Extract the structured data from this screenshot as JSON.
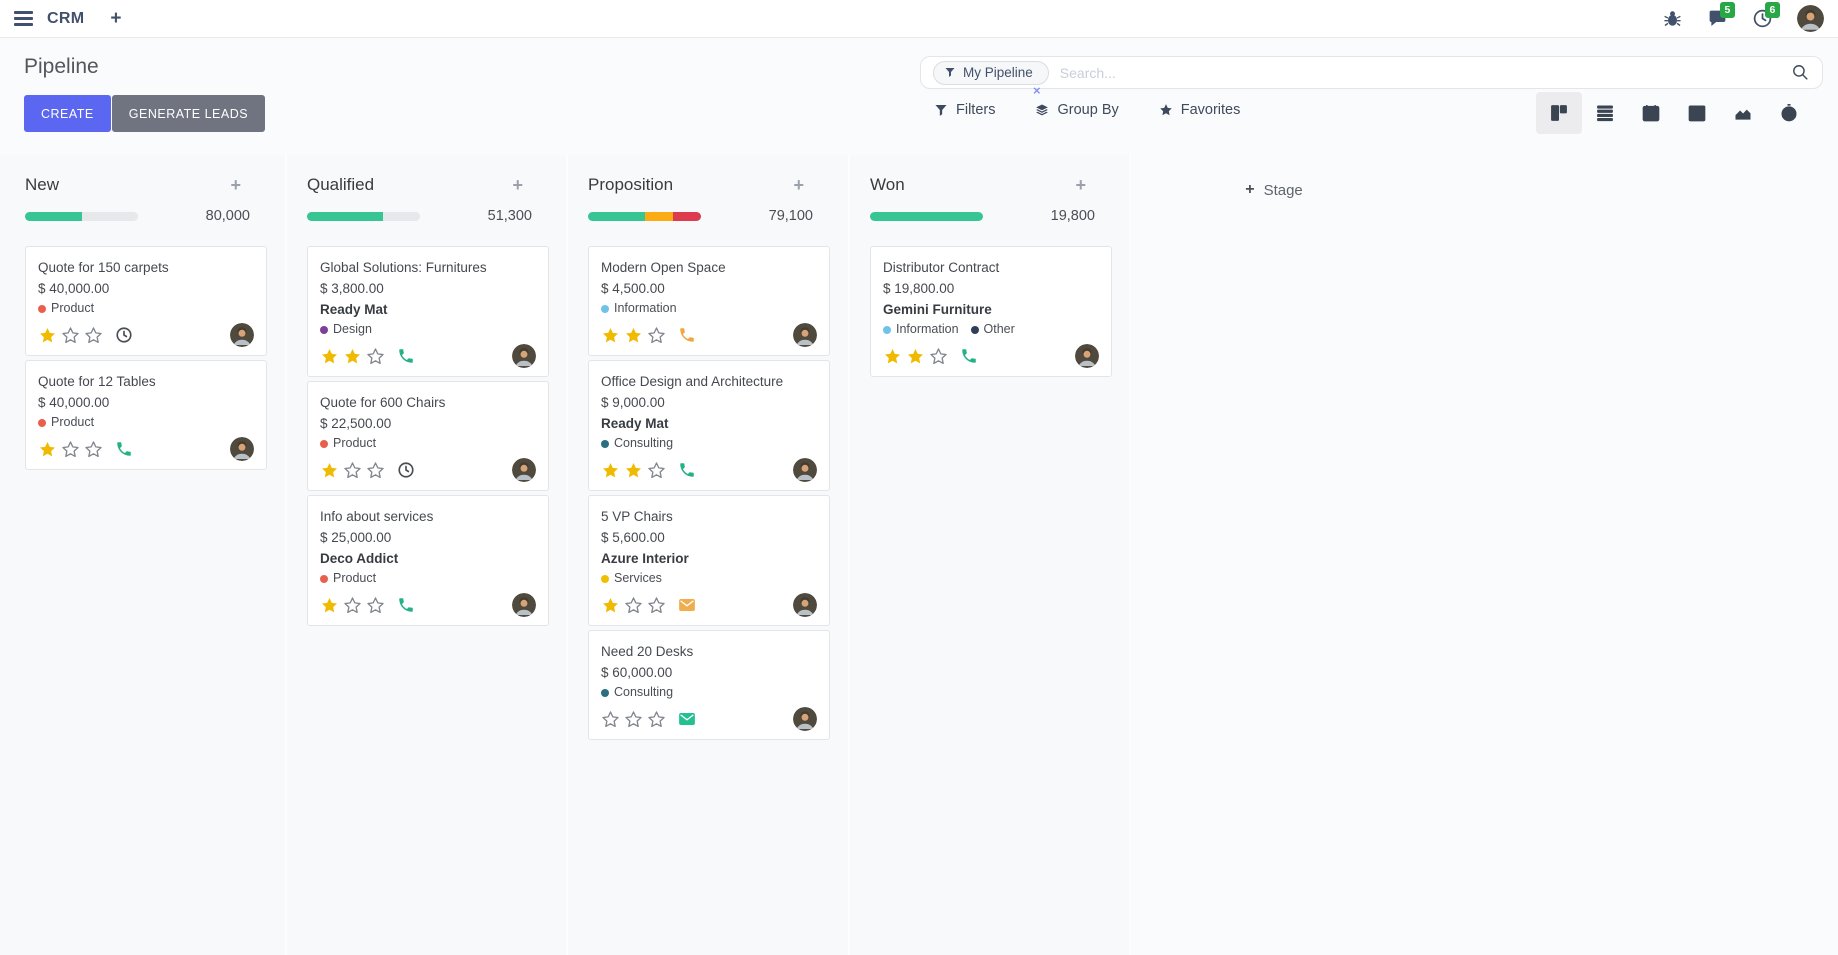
{
  "topbar": {
    "app_name": "CRM",
    "add_label": "+",
    "messages_badge": "5",
    "activities_badge": "6"
  },
  "control_panel": {
    "title": "Pipeline",
    "create_label": "CREATE",
    "generate_leads_label": "GENERATE LEADS",
    "search": {
      "facet_label": "My Pipeline",
      "facet_remove": "×",
      "placeholder": "Search..."
    },
    "filters_label": "Filters",
    "group_by_label": "Group By",
    "favorites_label": "Favorites",
    "views": [
      "kanban",
      "list",
      "calendar",
      "pivot",
      "graph",
      "activity"
    ],
    "active_view": "kanban"
  },
  "colors": {
    "primary_button": "#5b67f0",
    "secondary_button": "#6f7480",
    "badge_green": "#28a745",
    "progress_green": "#36c593",
    "progress_orange": "#fbac15",
    "progress_red": "#dc3c4e",
    "progress_muted": "#e6e8ec",
    "star_gold": "#f0ba00"
  },
  "board": {
    "add_stage_plus": "+",
    "add_stage_label": "Stage",
    "add_card_glyph": "+",
    "columns": [
      {
        "title": "New",
        "counter": "80,000",
        "progress": [
          {
            "state": "future",
            "color": "#36c593",
            "pct": 50
          },
          {
            "state": "none",
            "color": "#e6e8ec",
            "pct": 50
          }
        ],
        "cards": [
          {
            "title": "Quote for 150 carpets",
            "amount": "$ 40,000.00",
            "partner": null,
            "tags": [
              {
                "label": "Product",
                "color": "#e8604c"
              }
            ],
            "stars": 1,
            "activity": {
              "icon": "clock",
              "color": "#4a4e54"
            }
          },
          {
            "title": "Quote for 12 Tables",
            "amount": "$ 40,000.00",
            "partner": null,
            "tags": [
              {
                "label": "Product",
                "color": "#e8604c"
              }
            ],
            "stars": 1,
            "activity": {
              "icon": "phone",
              "color": "#24b187"
            }
          }
        ]
      },
      {
        "title": "Qualified",
        "counter": "51,300",
        "progress": [
          {
            "state": "future",
            "color": "#36c593",
            "pct": 67
          },
          {
            "state": "none",
            "color": "#e6e8ec",
            "pct": 33
          }
        ],
        "cards": [
          {
            "title": "Global Solutions: Furnitures",
            "amount": "$ 3,800.00",
            "partner": "Ready Mat",
            "tags": [
              {
                "label": "Design",
                "color": "#7d3f98"
              }
            ],
            "stars": 2,
            "activity": {
              "icon": "phone",
              "color": "#24b187"
            }
          },
          {
            "title": "Quote for 600 Chairs",
            "amount": "$ 22,500.00",
            "partner": null,
            "tags": [
              {
                "label": "Product",
                "color": "#e8604c"
              }
            ],
            "stars": 1,
            "activity": {
              "icon": "clock",
              "color": "#4a4e54"
            }
          },
          {
            "title": "Info about services",
            "amount": "$ 25,000.00",
            "partner": "Deco Addict",
            "tags": [
              {
                "label": "Product",
                "color": "#e8604c"
              }
            ],
            "stars": 1,
            "activity": {
              "icon": "phone",
              "color": "#24b187"
            }
          }
        ]
      },
      {
        "title": "Proposition",
        "counter": "79,100",
        "progress": [
          {
            "state": "future",
            "color": "#36c593",
            "pct": 50
          },
          {
            "state": "today",
            "color": "#fbac15",
            "pct": 25
          },
          {
            "state": "overdue",
            "color": "#dc3c4e",
            "pct": 25
          }
        ],
        "cards": [
          {
            "title": "Modern Open Space",
            "amount": "$ 4,500.00",
            "partner": null,
            "tags": [
              {
                "label": "Information",
                "color": "#6fc3e8"
              }
            ],
            "stars": 2,
            "activity": {
              "icon": "phone",
              "color": "#f2a641"
            }
          },
          {
            "title": "Office Design and Architecture",
            "amount": "$ 9,000.00",
            "partner": "Ready Mat",
            "tags": [
              {
                "label": "Consulting",
                "color": "#2a6f7f"
              }
            ],
            "stars": 2,
            "activity": {
              "icon": "phone",
              "color": "#24b187"
            }
          },
          {
            "title": "5 VP Chairs",
            "amount": "$ 5,600.00",
            "partner": "Azure Interior",
            "tags": [
              {
                "label": "Services",
                "color": "#efc000"
              }
            ],
            "stars": 1,
            "activity": {
              "icon": "envelope",
              "color": "#f0ad4e"
            }
          },
          {
            "title": "Need 20 Desks",
            "amount": "$ 60,000.00",
            "partner": null,
            "tags": [
              {
                "label": "Consulting",
                "color": "#2a6f7f"
              }
            ],
            "stars": 0,
            "activity": {
              "icon": "envelope",
              "color": "#24c08f"
            }
          }
        ]
      },
      {
        "title": "Won",
        "counter": "19,800",
        "progress": [
          {
            "state": "future",
            "color": "#36c593",
            "pct": 100
          }
        ],
        "cards": [
          {
            "title": "Distributor Contract",
            "amount": "$ 19,800.00",
            "partner": "Gemini Furniture",
            "tags": [
              {
                "label": "Information",
                "color": "#6fc3e8"
              },
              {
                "label": "Other",
                "color": "#2e4057"
              }
            ],
            "stars": 2,
            "activity": {
              "icon": "phone",
              "color": "#24b187"
            }
          }
        ]
      }
    ]
  }
}
